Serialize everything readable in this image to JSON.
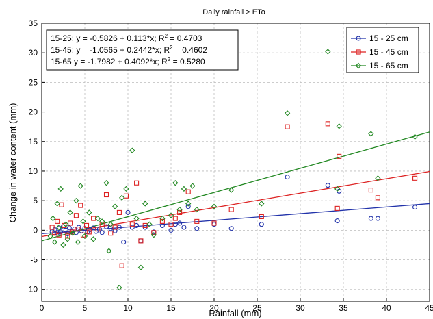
{
  "chart_data": {
    "type": "scatter",
    "title": "Daily rainfall  > ETo",
    "xlabel": "Rainfall (mm)",
    "ylabel": "Change in water content (mm)",
    "xlim": [
      0,
      45
    ],
    "ylim": [
      -12,
      35
    ],
    "xticks": [
      0,
      5,
      10,
      15,
      20,
      25,
      30,
      35,
      40,
      45
    ],
    "yticks": [
      -10,
      -5,
      0,
      5,
      10,
      15,
      20,
      25,
      30,
      35
    ],
    "grid": true,
    "legend": "top-right",
    "equations": [
      {
        "id": "15-25:",
        "formula": "y = -0.5826 + 0.113*x;",
        "r2_label": "R",
        "r2_sup": "2",
        "r2_value": " = 0.4703"
      },
      {
        "id": "15-45:",
        "formula": "y = -1.0565 + 0.2442*x;",
        "r2_label": "R",
        "r2_sup": "2",
        "r2_value": " = 0.4602"
      },
      {
        "id": "15-65",
        "formula": "y = -1.7982 + 0.4092*x;",
        "r2_label": "R",
        "r2_sup": "2",
        "r2_value": " = 0.5280"
      }
    ],
    "series": [
      {
        "name": "15 - 25 cm",
        "color": "#2233aa",
        "marker": "circle",
        "intercept": -0.5826,
        "slope": 0.113,
        "points": [
          [
            1.2,
            -0.2
          ],
          [
            1.5,
            0.1
          ],
          [
            1.8,
            -0.5
          ],
          [
            2.0,
            0.3
          ],
          [
            2.2,
            -0.3
          ],
          [
            2.5,
            0.6
          ],
          [
            2.8,
            0.0
          ],
          [
            3.0,
            -0.6
          ],
          [
            3.2,
            0.4
          ],
          [
            3.5,
            -0.2
          ],
          [
            3.8,
            0.2
          ],
          [
            4.0,
            -0.4
          ],
          [
            4.3,
            0.5
          ],
          [
            4.6,
            -0.1
          ],
          [
            5.0,
            0.3
          ],
          [
            5.3,
            -0.3
          ],
          [
            5.6,
            0.1
          ],
          [
            6.0,
            0.4
          ],
          [
            6.3,
            -0.2
          ],
          [
            6.7,
            0.2
          ],
          [
            7.0,
            -0.4
          ],
          [
            7.5,
            0.6
          ],
          [
            8.0,
            0.3
          ],
          [
            8.5,
            -0.1
          ],
          [
            9.0,
            0.5
          ],
          [
            9.5,
            -2.0
          ],
          [
            10.0,
            3.0
          ],
          [
            10.5,
            0.5
          ],
          [
            11.0,
            0.8
          ],
          [
            11.5,
            -1.8
          ],
          [
            12.0,
            0.5
          ],
          [
            13.0,
            -0.3
          ],
          [
            14.0,
            0.8
          ],
          [
            15.0,
            0.0
          ],
          [
            15.5,
            1.0
          ],
          [
            16.0,
            1.2
          ],
          [
            16.5,
            0.5
          ],
          [
            17.0,
            4.0
          ],
          [
            18.0,
            0.3
          ],
          [
            20.0,
            1.0
          ],
          [
            22.0,
            0.3
          ],
          [
            25.5,
            1.0
          ],
          [
            28.5,
            9.0
          ],
          [
            33.2,
            7.6
          ],
          [
            34.3,
            1.6
          ],
          [
            34.5,
            6.6
          ],
          [
            38.2,
            2.0
          ],
          [
            39.0,
            2.0
          ],
          [
            43.3,
            3.9
          ]
        ]
      },
      {
        "name": "15 - 45 cm",
        "color": "#dd2222",
        "marker": "square",
        "intercept": -1.0565,
        "slope": 0.2442,
        "points": [
          [
            1.2,
            0.5
          ],
          [
            1.5,
            -0.5
          ],
          [
            1.8,
            1.5
          ],
          [
            2.0,
            -0.8
          ],
          [
            2.3,
            4.3
          ],
          [
            2.6,
            0.8
          ],
          [
            3.0,
            -1.0
          ],
          [
            3.3,
            1.2
          ],
          [
            3.6,
            -0.3
          ],
          [
            4.0,
            2.5
          ],
          [
            4.2,
            0.2
          ],
          [
            4.5,
            4.2
          ],
          [
            4.8,
            -0.8
          ],
          [
            5.2,
            0.8
          ],
          [
            5.5,
            -0.3
          ],
          [
            6.0,
            2.0
          ],
          [
            6.5,
            0.2
          ],
          [
            7.0,
            1.0
          ],
          [
            7.5,
            6.0
          ],
          [
            8.0,
            -0.5
          ],
          [
            8.5,
            0.5
          ],
          [
            9.0,
            3.0
          ],
          [
            9.3,
            -6.0
          ],
          [
            9.8,
            5.8
          ],
          [
            10.5,
            1.0
          ],
          [
            11.0,
            8.0
          ],
          [
            11.5,
            -1.8
          ],
          [
            12.0,
            0.8
          ],
          [
            13.0,
            -0.4
          ],
          [
            14.0,
            1.5
          ],
          [
            15.0,
            1.0
          ],
          [
            15.5,
            2.0
          ],
          [
            16.0,
            3.0
          ],
          [
            17.0,
            6.5
          ],
          [
            18.0,
            1.5
          ],
          [
            20.0,
            1.2
          ],
          [
            22.0,
            3.5
          ],
          [
            25.5,
            2.3
          ],
          [
            28.5,
            17.5
          ],
          [
            33.2,
            18.0
          ],
          [
            34.5,
            12.5
          ],
          [
            34.3,
            3.7
          ],
          [
            38.2,
            6.8
          ],
          [
            39.0,
            5.5
          ],
          [
            43.3,
            8.8
          ]
        ]
      },
      {
        "name": "15 - 65 cm",
        "color": "#228822",
        "marker": "diamond",
        "intercept": -1.7982,
        "slope": 0.4092,
        "points": [
          [
            1.0,
            -1.0
          ],
          [
            1.3,
            2.0
          ],
          [
            1.5,
            -2.0
          ],
          [
            1.8,
            4.5
          ],
          [
            2.0,
            0.5
          ],
          [
            2.2,
            7.0
          ],
          [
            2.5,
            -2.5
          ],
          [
            2.8,
            1.0
          ],
          [
            3.0,
            -1.5
          ],
          [
            3.3,
            3.0
          ],
          [
            3.6,
            -0.5
          ],
          [
            4.0,
            5.0
          ],
          [
            4.2,
            -2.0
          ],
          [
            4.5,
            7.5
          ],
          [
            4.8,
            1.5
          ],
          [
            5.0,
            -1.0
          ],
          [
            5.5,
            3.0
          ],
          [
            6.0,
            -1.5
          ],
          [
            6.5,
            2.0
          ],
          [
            7.0,
            1.5
          ],
          [
            7.5,
            8.0
          ],
          [
            7.8,
            -3.5
          ],
          [
            8.0,
            1.0
          ],
          [
            8.5,
            4.0
          ],
          [
            9.0,
            -9.7
          ],
          [
            9.3,
            5.5
          ],
          [
            9.8,
            7.0
          ],
          [
            10.5,
            13.5
          ],
          [
            11.0,
            2.0
          ],
          [
            11.5,
            -6.3
          ],
          [
            12.0,
            4.5
          ],
          [
            12.5,
            1.0
          ],
          [
            13.0,
            -0.8
          ],
          [
            14.0,
            2.0
          ],
          [
            15.0,
            2.5
          ],
          [
            15.5,
            8.0
          ],
          [
            16.0,
            3.5
          ],
          [
            16.5,
            7.0
          ],
          [
            17.0,
            4.5
          ],
          [
            17.5,
            7.5
          ],
          [
            18.0,
            3.5
          ],
          [
            20.0,
            4.0
          ],
          [
            22.0,
            6.8
          ],
          [
            25.5,
            4.5
          ],
          [
            28.5,
            19.8
          ],
          [
            33.2,
            30.2
          ],
          [
            34.5,
            17.6
          ],
          [
            34.3,
            7.0
          ],
          [
            38.2,
            16.3
          ],
          [
            39.0,
            8.8
          ],
          [
            43.3,
            15.8
          ]
        ]
      }
    ]
  }
}
